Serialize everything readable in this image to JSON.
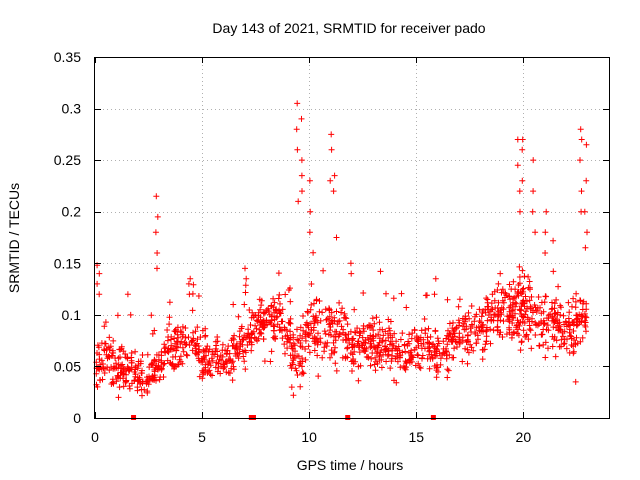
{
  "chart_data": {
    "type": "scatter",
    "title": "Day 143 of 2021, SRMTID for receiver pado",
    "xlabel": "GPS time / hours",
    "ylabel": "SRMTID / TECUs",
    "xlim": [
      0,
      24
    ],
    "ylim": [
      0,
      0.35
    ],
    "grid": true,
    "marker": "+",
    "series_color": "#ff0000",
    "x_ticks": [
      0,
      5,
      10,
      15,
      20
    ],
    "x_tick_labels": [
      "0",
      "5",
      "10",
      "15",
      "20"
    ],
    "y_ticks": [
      0,
      0.05,
      0.1,
      0.15,
      0.2,
      0.25,
      0.3,
      0.35
    ],
    "y_tick_labels": [
      "0",
      "0.05",
      "0.1",
      "0.15",
      "0.2",
      "0.25",
      "0.3",
      "0.35"
    ],
    "baseline_markers_x": [
      1.8,
      7.3,
      7.4,
      11.8,
      15.8
    ],
    "envelope": {
      "x": [
        0,
        0.5,
        1,
        1.5,
        2,
        2.5,
        3,
        3.5,
        4,
        4.5,
        5,
        5.5,
        6,
        6.5,
        7,
        7.5,
        8,
        8.5,
        9,
        9.5,
        10,
        10.5,
        11,
        11.5,
        12,
        12.5,
        13,
        13.5,
        14,
        14.5,
        15,
        15.5,
        16,
        16.5,
        17,
        17.5,
        18,
        18.5,
        19,
        19.5,
        20,
        20.5,
        21,
        21.5,
        22,
        22.5,
        23
      ],
      "base": [
        0.05,
        0.06,
        0.05,
        0.05,
        0.04,
        0.04,
        0.05,
        0.07,
        0.07,
        0.08,
        0.06,
        0.06,
        0.06,
        0.06,
        0.07,
        0.09,
        0.09,
        0.1,
        0.08,
        0.06,
        0.09,
        0.08,
        0.08,
        0.08,
        0.07,
        0.07,
        0.08,
        0.07,
        0.07,
        0.06,
        0.07,
        0.07,
        0.06,
        0.07,
        0.08,
        0.08,
        0.09,
        0.1,
        0.1,
        0.1,
        0.11,
        0.1,
        0.09,
        0.1,
        0.08,
        0.09,
        0.1
      ],
      "spread": [
        0.03,
        0.03,
        0.025,
        0.02,
        0.02,
        0.02,
        0.02,
        0.025,
        0.025,
        0.025,
        0.025,
        0.02,
        0.02,
        0.025,
        0.025,
        0.03,
        0.03,
        0.03,
        0.035,
        0.035,
        0.04,
        0.035,
        0.035,
        0.03,
        0.03,
        0.03,
        0.03,
        0.025,
        0.025,
        0.025,
        0.025,
        0.025,
        0.025,
        0.025,
        0.025,
        0.03,
        0.03,
        0.03,
        0.03,
        0.035,
        0.035,
        0.035,
        0.035,
        0.035,
        0.03,
        0.03,
        0.03
      ]
    },
    "spikes": [
      {
        "x": 0.15,
        "values": [
          0.148,
          0.14,
          0.13,
          0.12
        ]
      },
      {
        "x": 1.6,
        "values": [
          0.12,
          0.1
        ]
      },
      {
        "x": 2.9,
        "values": [
          0.215,
          0.195,
          0.18,
          0.16,
          0.145
        ]
      },
      {
        "x": 4.4,
        "values": [
          0.135,
          0.13,
          0.12
        ]
      },
      {
        "x": 7.0,
        "values": [
          0.145,
          0.135
        ]
      },
      {
        "x": 9.45,
        "values": [
          0.305,
          0.28,
          0.26,
          0.21
        ]
      },
      {
        "x": 9.65,
        "values": [
          0.29,
          0.25,
          0.235,
          0.22
        ]
      },
      {
        "x": 10.0,
        "values": [
          0.23,
          0.2,
          0.18
        ]
      },
      {
        "x": 11.0,
        "values": [
          0.275,
          0.26,
          0.23
        ]
      },
      {
        "x": 11.2,
        "values": [
          0.235,
          0.22,
          0.175
        ]
      },
      {
        "x": 12.0,
        "values": [
          0.15,
          0.14
        ]
      },
      {
        "x": 15.9,
        "values": [
          0.135,
          0.12
        ]
      },
      {
        "x": 19.8,
        "values": [
          0.27,
          0.245,
          0.22,
          0.2
        ]
      },
      {
        "x": 20.0,
        "values": [
          0.27,
          0.26,
          0.23
        ]
      },
      {
        "x": 20.5,
        "values": [
          0.25,
          0.22,
          0.2,
          0.18
        ]
      },
      {
        "x": 21.0,
        "values": [
          0.2,
          0.18,
          0.16
        ]
      },
      {
        "x": 22.7,
        "values": [
          0.28,
          0.27,
          0.25,
          0.22,
          0.2
        ]
      },
      {
        "x": 22.9,
        "values": [
          0.265,
          0.23,
          0.2,
          0.18,
          0.165
        ]
      },
      {
        "x": 22.4,
        "values": [
          0.035
        ]
      },
      {
        "x": 1.1,
        "values": [
          0.02,
          0.03
        ]
      },
      {
        "x": 9.2,
        "values": [
          0.022,
          0.03
        ]
      }
    ],
    "point_count": 1500
  }
}
